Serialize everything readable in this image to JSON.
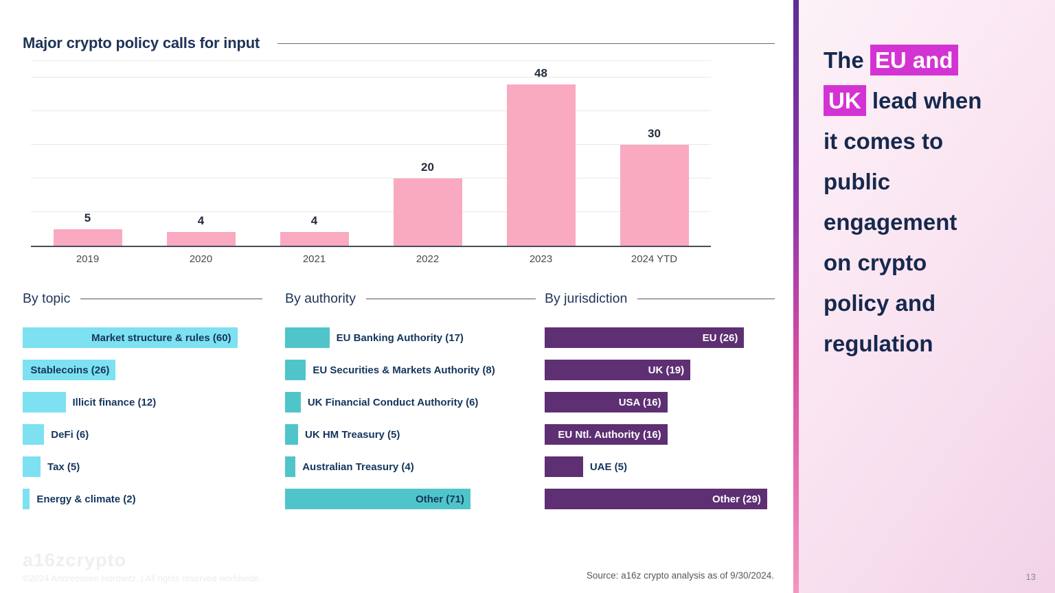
{
  "slide": {
    "title": "Major crypto policy calls for input",
    "page_number": "13",
    "source_note": "Source: a16z crypto analysis as of 9/30/2024.",
    "watermark_logo": "a16zcrypto",
    "watermark_copyright": "©2024 Andreessen Horowitz.  |  All rights reserved worldwide."
  },
  "sidebar": {
    "headline_lines": [
      [
        {
          "text": "The ",
          "highlight": false
        },
        {
          "text": "EU and",
          "highlight": true
        }
      ],
      [
        {
          "text": "UK",
          "highlight": true
        },
        {
          "text": " lead when",
          "highlight": false
        }
      ],
      [
        {
          "text": "it comes to",
          "highlight": false
        }
      ],
      [
        {
          "text": "public",
          "highlight": false
        }
      ],
      [
        {
          "text": "engagement",
          "highlight": false
        }
      ],
      [
        {
          "text": "on crypto",
          "highlight": false
        }
      ],
      [
        {
          "text": "policy and",
          "highlight": false
        }
      ],
      [
        {
          "text": "regulation",
          "highlight": false
        }
      ]
    ],
    "highlight_color": "#D433D4",
    "text_color": "#16294D"
  },
  "chart_data": [
    {
      "type": "bar",
      "orientation": "vertical",
      "title": "Major crypto policy calls for input",
      "categories": [
        "2019",
        "2020",
        "2021",
        "2022",
        "2023",
        "2024 YTD"
      ],
      "values": [
        5,
        4,
        4,
        20,
        48,
        30
      ],
      "ylim": [
        0,
        50
      ],
      "grid_step": 10,
      "grid": true,
      "value_labels": true,
      "bar_color": "#F9A9C0"
    },
    {
      "type": "bar",
      "orientation": "horizontal",
      "title": "By topic",
      "bar_color": "#7DE1F1",
      "inside_label_color": "#14355C",
      "scale_max": 67,
      "items": [
        {
          "label": "Market structure & rules (60)",
          "value": 60,
          "label_position": "inside"
        },
        {
          "label": "Stablecoins (26)",
          "value": 26,
          "label_position": "inside"
        },
        {
          "label": "Illicit finance (12)",
          "value": 12,
          "label_position": "outside"
        },
        {
          "label": "DeFi (6)",
          "value": 6,
          "label_position": "outside"
        },
        {
          "label": "Tax (5)",
          "value": 5,
          "label_position": "outside"
        },
        {
          "label": "Energy & climate (2)",
          "value": 2,
          "label_position": "outside"
        }
      ]
    },
    {
      "type": "bar",
      "orientation": "horizontal",
      "title": "By authority",
      "bar_color": "#50C5C9",
      "inside_label_color": "#14355C",
      "scale_max": 96,
      "items": [
        {
          "label": "EU Banking Authority (17)",
          "value": 17,
          "label_position": "outside"
        },
        {
          "label": "EU Securities & Markets Authority (8)",
          "value": 8,
          "label_position": "outside"
        },
        {
          "label": "UK Financial Conduct Authority (6)",
          "value": 6,
          "label_position": "outside"
        },
        {
          "label": "UK HM Treasury (5)",
          "value": 5,
          "label_position": "outside"
        },
        {
          "label": "Australian Treasury (4)",
          "value": 4,
          "label_position": "outside"
        },
        {
          "label": "Other (71)",
          "value": 71,
          "label_position": "inside"
        }
      ]
    },
    {
      "type": "bar",
      "orientation": "horizontal",
      "title": "By jurisdiction",
      "bar_color": "#5E2F73",
      "inside_label_color": "#FFFFFF",
      "scale_max": 30,
      "items": [
        {
          "label": "EU (26)",
          "value": 26,
          "label_position": "inside"
        },
        {
          "label": "UK (19)",
          "value": 19,
          "label_position": "inside"
        },
        {
          "label": "USA (16)",
          "value": 16,
          "label_position": "inside"
        },
        {
          "label": "EU Ntl. Authority (16)",
          "value": 16,
          "label_position": "inside"
        },
        {
          "label": "UAE (5)",
          "value": 5,
          "label_position": "outside"
        },
        {
          "label": "Other (29)",
          "value": 29,
          "label_position": "inside"
        }
      ]
    }
  ]
}
